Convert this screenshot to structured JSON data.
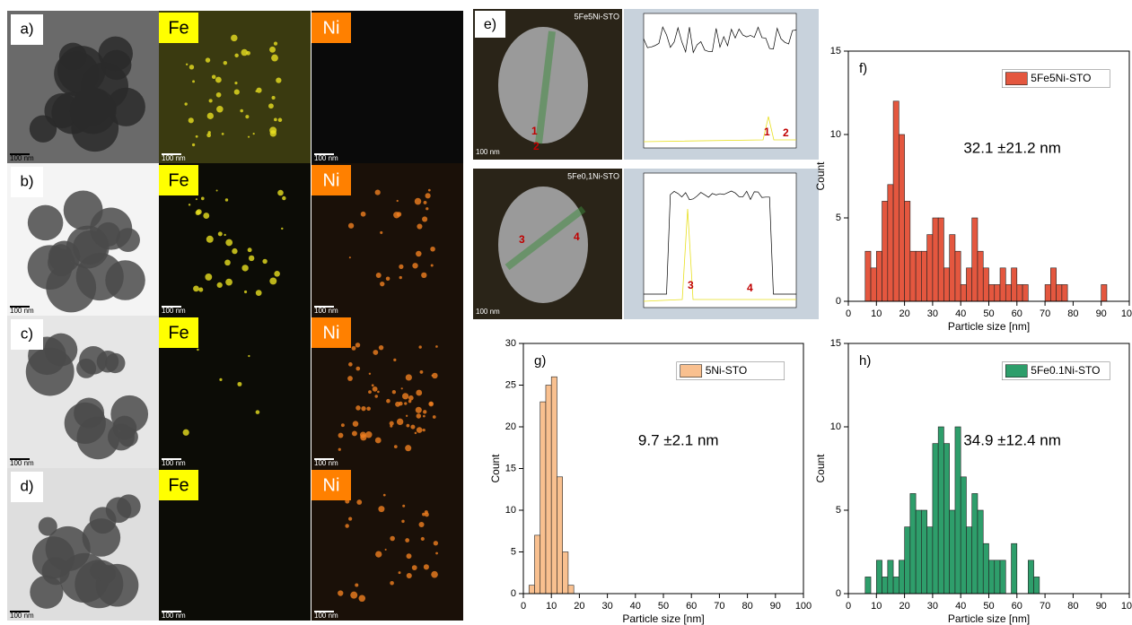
{
  "figure": {
    "rows": [
      {
        "label": "a)"
      },
      {
        "label": "b)"
      },
      {
        "label": "c)"
      },
      {
        "label": "d)"
      }
    ],
    "fe": "Fe",
    "ni": "Ni",
    "scale_bar": "100 nm",
    "e": {
      "label": "e)",
      "top": "5Fe5Ni-STO",
      "bottom": "5Fe0,1Ni-STO",
      "markers": [
        "1",
        "2",
        "3",
        "4"
      ]
    }
  },
  "chart_data": [
    {
      "type": "histogram",
      "panel": "f)",
      "x_label": "Particle size [nm]",
      "y_label": "Count",
      "annotation": "32.1 ±21.2 nm",
      "bins": [
        6,
        8,
        10,
        12,
        14,
        16,
        18,
        20,
        22,
        24,
        26,
        28,
        30,
        32,
        34,
        36,
        38,
        40,
        42,
        44,
        46,
        48,
        50,
        52,
        54,
        56,
        58,
        60,
        62,
        64,
        66,
        68,
        70,
        72,
        74,
        76,
        78,
        80,
        82,
        84,
        86,
        88,
        90,
        92
      ],
      "series": [
        {
          "name": "5Fe5Ni-STO",
          "color": "#e4573f",
          "values": [
            3,
            2,
            3,
            6,
            7,
            12,
            10,
            6,
            3,
            3,
            3,
            4,
            5,
            5,
            2,
            4,
            3,
            1,
            2,
            5,
            3,
            2,
            1,
            1,
            2,
            1,
            2,
            1,
            1,
            0,
            0,
            0,
            1,
            2,
            1,
            1,
            0,
            0,
            0,
            0,
            0,
            0,
            1
          ]
        }
      ],
      "xlim": [
        0,
        100
      ],
      "xticks": [
        0,
        10,
        20,
        30,
        40,
        50,
        60,
        70,
        80,
        90,
        100
      ],
      "ylim": [
        0,
        15
      ],
      "yticks": [
        0,
        5,
        10,
        15
      ]
    },
    {
      "type": "histogram",
      "panel": "g)",
      "x_label": "Particle size [nm]",
      "y_label": "Count",
      "annotation": "9.7 ±2.1 nm",
      "bins": [
        2,
        4,
        6,
        8,
        10,
        12,
        14,
        16,
        18
      ],
      "series": [
        {
          "name": "5Ni-STO",
          "color": "#f9c08f",
          "values": [
            1,
            7,
            23,
            25,
            26,
            14,
            5,
            1
          ]
        }
      ],
      "xlim": [
        0,
        100
      ],
      "xticks": [
        0,
        10,
        20,
        30,
        40,
        50,
        60,
        70,
        80,
        90,
        100
      ],
      "ylim": [
        0,
        30
      ],
      "yticks": [
        0,
        5,
        10,
        15,
        20,
        25,
        30
      ]
    },
    {
      "type": "histogram",
      "panel": "h)",
      "x_label": "Particle size [nm]",
      "y_label": "Count",
      "annotation": "34.9 ±12.4 nm",
      "bins": [
        6,
        8,
        10,
        12,
        14,
        16,
        18,
        20,
        22,
        24,
        26,
        28,
        30,
        32,
        34,
        36,
        38,
        40,
        42,
        44,
        46,
        48,
        50,
        52,
        54,
        56,
        58,
        60,
        62,
        64,
        66,
        68
      ],
      "series": [
        {
          "name": "5Fe0.1Ni-STO",
          "color": "#2e9e6b",
          "values": [
            1,
            0,
            2,
            1,
            2,
            1,
            2,
            4,
            6,
            5,
            5,
            4,
            9,
            10,
            9,
            5,
            10,
            7,
            4,
            6,
            5,
            3,
            2,
            2,
            2,
            0,
            3,
            0,
            0,
            2,
            1
          ]
        }
      ],
      "xlim": [
        0,
        100
      ],
      "xticks": [
        0,
        10,
        20,
        30,
        40,
        50,
        60,
        70,
        80,
        90,
        100
      ],
      "ylim": [
        0,
        15
      ],
      "yticks": [
        0,
        5,
        10,
        15
      ]
    }
  ]
}
